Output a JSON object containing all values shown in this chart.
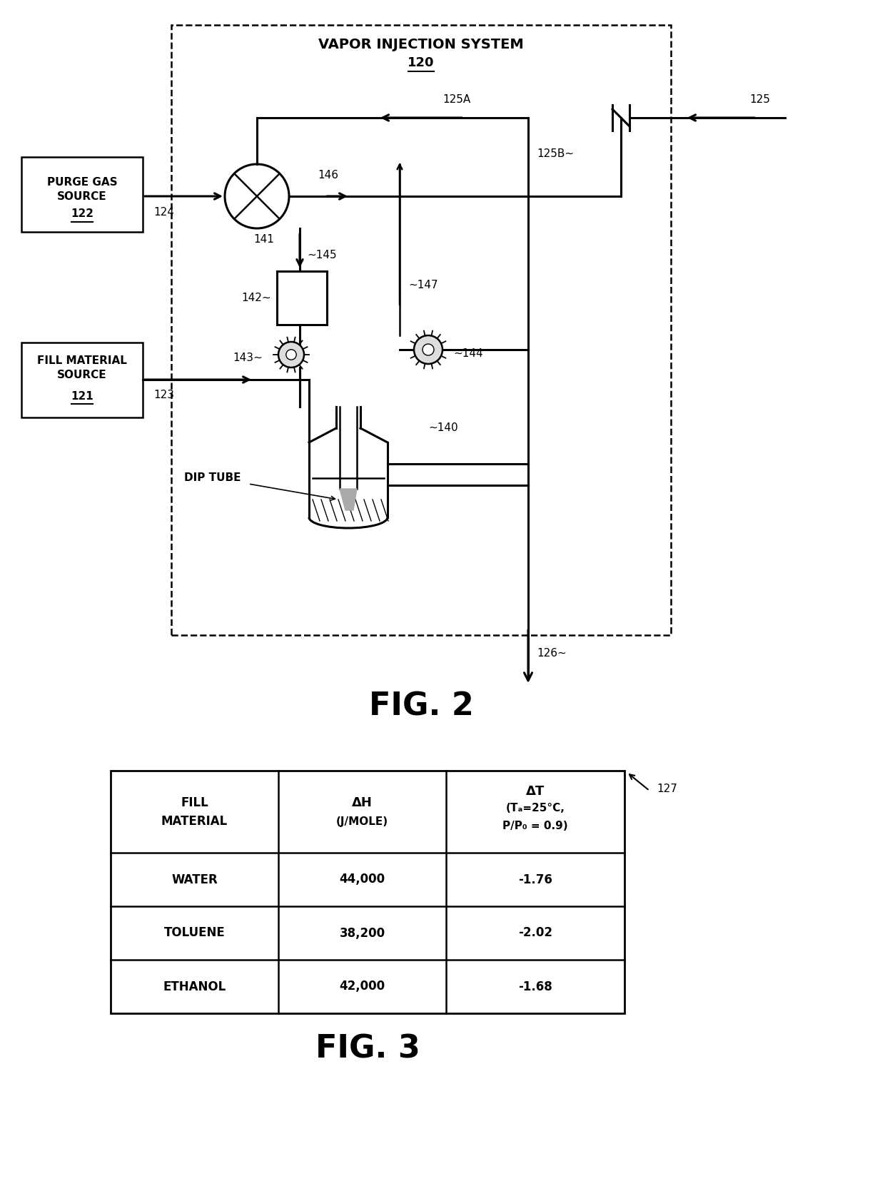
{
  "fig_width": 12.4,
  "fig_height": 16.55,
  "bg_color": "#ffffff",
  "fig2_caption": "FIG. 2",
  "fig3_caption": "FIG. 3",
  "vapor_system_label": "VAPOR INJECTION SYSTEM",
  "vapor_system_num": "120",
  "purge_gas_num": "122",
  "fill_material_num": "121",
  "table_rows": [
    [
      "WATER",
      "44,000",
      "-1.76"
    ],
    [
      "TOLUENE",
      "38,200",
      "-2.02"
    ],
    [
      "ETHANOL",
      "42,000",
      "-1.68"
    ]
  ],
  "ref_127": "127"
}
